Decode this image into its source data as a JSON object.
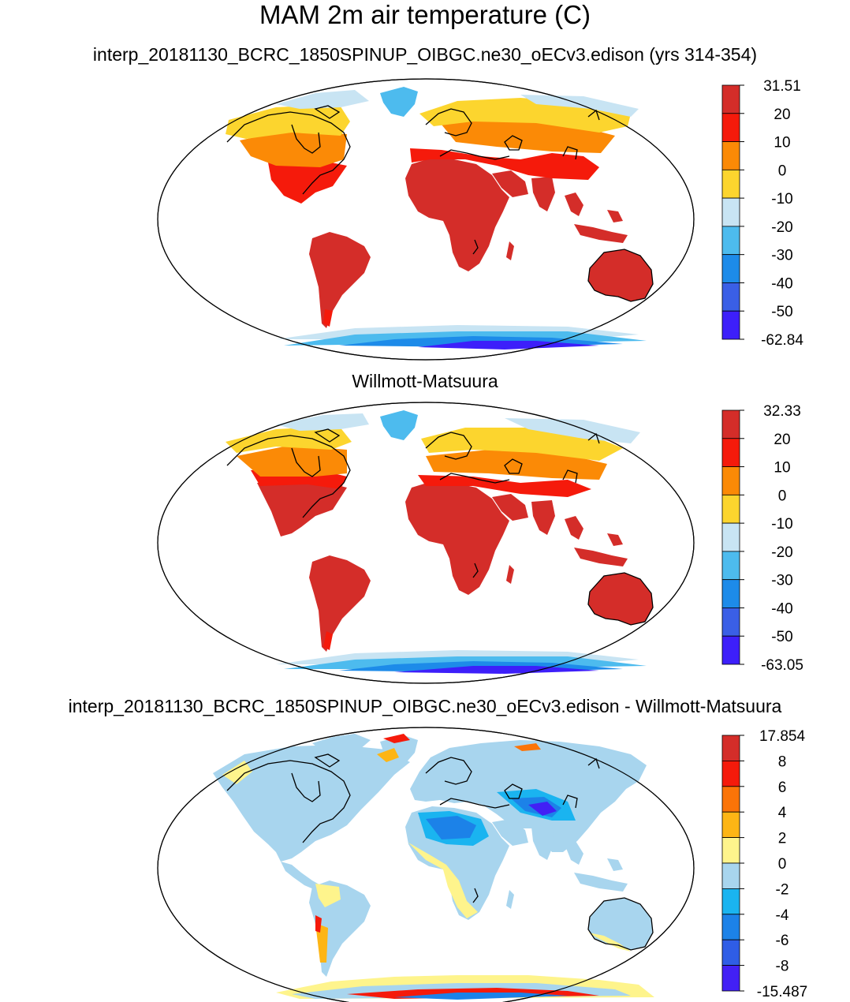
{
  "figure": {
    "title": "MAM 2m air temperature (C)"
  },
  "panels": [
    {
      "title": "interp_20181130_BCRC_1850SPINUP_OIBGC.ne30_oECv3.edison (yrs 314-354)",
      "colorbar": {
        "labels": [
          "31.51",
          "20",
          "10",
          "0",
          "-10",
          "-20",
          "-30",
          "-40",
          "-50",
          "-62.84"
        ],
        "colors": [
          "#d42d29",
          "#f51a0b",
          "#fb8a06",
          "#fcd52e",
          "#c8e4f3",
          "#4dbbee",
          "#1d8be9",
          "#3a5fe6",
          "#3d1ffa"
        ]
      }
    },
    {
      "title": "Willmott-Matsuura",
      "colorbar": {
        "labels": [
          "32.33",
          "20",
          "10",
          "0",
          "-10",
          "-20",
          "-30",
          "-40",
          "-50",
          "-63.05"
        ],
        "colors": [
          "#d42d29",
          "#f51a0b",
          "#fb8a06",
          "#fcd52e",
          "#c8e4f3",
          "#4dbbee",
          "#1d8be9",
          "#3a5fe6",
          "#3d1ffa"
        ]
      }
    },
    {
      "title": "interp_20181130_BCRC_1850SPINUP_OIBGC.ne30_oECv3.edison - Willmott-Matsuura",
      "colorbar": {
        "labels": [
          "17.854",
          "8",
          "6",
          "4",
          "2",
          "0",
          "-2",
          "-4",
          "-6",
          "-8",
          "-15.487"
        ],
        "colors": [
          "#d42d29",
          "#f51a0b",
          "#fb7408",
          "#fdb515",
          "#fef48c",
          "#a8d5ee",
          "#1ab4f0",
          "#1c82e8",
          "#2f5de6",
          "#4220f5"
        ]
      }
    }
  ]
}
